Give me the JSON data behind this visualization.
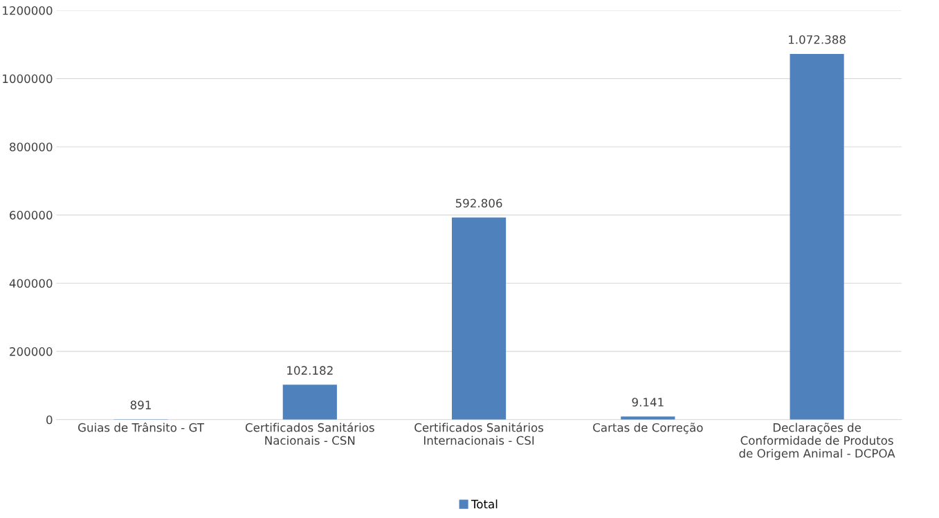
{
  "chart_data": {
    "type": "bar",
    "categories": [
      "Guias de Trânsito - GT",
      "Certificados Sanitários\nNacionais - CSN",
      "Certificados Sanitários\nInternacionais - CSI",
      "Cartas de Correção",
      "Declarações de\nConformidade de Produtos\nde Origem Animal - DCPOA"
    ],
    "series": [
      {
        "name": "Total",
        "color": "#4f81bd",
        "values": [
          891,
          102182,
          592806,
          9141,
          1072388
        ],
        "value_labels": [
          "891",
          "102.182",
          "592.806",
          "9.141",
          "1.072.388"
        ]
      }
    ],
    "ylim": [
      0,
      1200000
    ],
    "yticks": [
      0,
      200000,
      400000,
      600000,
      800000,
      1000000,
      1200000
    ],
    "grid": "y",
    "legend": "bottom"
  }
}
